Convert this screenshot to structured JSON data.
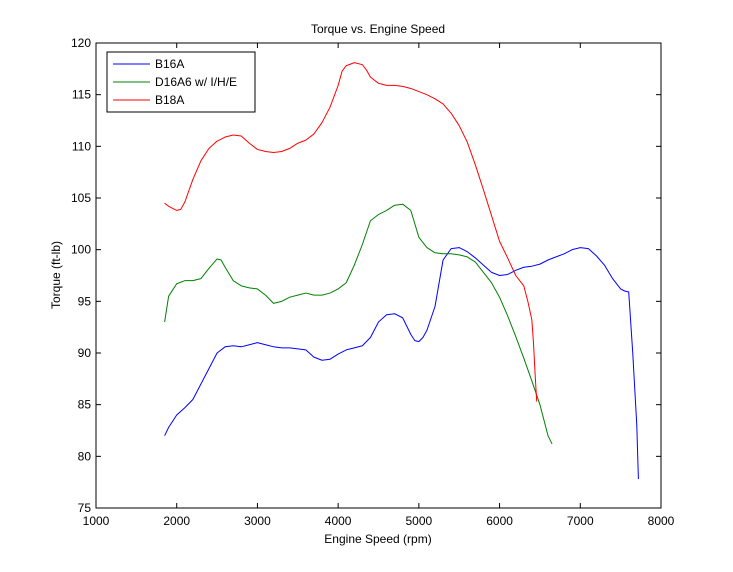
{
  "chart_data": {
    "type": "line",
    "title": "Torque vs. Engine Speed",
    "xlabel": "Engine Speed (rpm)",
    "ylabel": "Torque (ft-lb)",
    "xlim": [
      1000,
      8000
    ],
    "ylim": [
      75,
      120
    ],
    "xticks": [
      1000,
      2000,
      3000,
      4000,
      5000,
      6000,
      7000,
      8000
    ],
    "yticks": [
      75,
      80,
      85,
      90,
      95,
      100,
      105,
      110,
      115,
      120
    ],
    "grid": false,
    "legend_position": "top-left",
    "series": [
      {
        "name": "B16A",
        "color": "#0000ff",
        "x": [
          1850,
          1900,
          2000,
          2100,
          2200,
          2300,
          2400,
          2500,
          2600,
          2700,
          2800,
          2900,
          3000,
          3100,
          3200,
          3300,
          3400,
          3500,
          3600,
          3700,
          3800,
          3900,
          4000,
          4100,
          4200,
          4300,
          4400,
          4500,
          4600,
          4700,
          4800,
          4900,
          4950,
          5000,
          5050,
          5100,
          5200,
          5300,
          5400,
          5500,
          5600,
          5700,
          5800,
          5900,
          6000,
          6100,
          6200,
          6300,
          6400,
          6500,
          6600,
          6700,
          6800,
          6900,
          7000,
          7100,
          7200,
          7300,
          7400,
          7500,
          7550,
          7600,
          7650,
          7700,
          7720
        ],
        "y": [
          82,
          82.8,
          84,
          84.7,
          85.5,
          87,
          88.5,
          90,
          90.6,
          90.7,
          90.6,
          90.8,
          91,
          90.8,
          90.6,
          90.5,
          90.5,
          90.4,
          90.3,
          89.6,
          89.3,
          89.4,
          89.9,
          90.3,
          90.5,
          90.7,
          91.5,
          93,
          93.7,
          93.8,
          93.4,
          91.8,
          91.2,
          91.1,
          91.5,
          92.2,
          94.5,
          99,
          100.1,
          100.2,
          99.8,
          99.2,
          98.5,
          97.8,
          97.5,
          97.6,
          98,
          98.3,
          98.4,
          98.6,
          99,
          99.3,
          99.6,
          100,
          100.2,
          100.1,
          99.4,
          98.5,
          97.2,
          96.2,
          96,
          95.9,
          90,
          83,
          77.8
        ]
      },
      {
        "name": "D16A6 w/ I/H/E",
        "color": "#008000",
        "x": [
          1850,
          1900,
          2000,
          2100,
          2200,
          2300,
          2400,
          2500,
          2550,
          2600,
          2700,
          2800,
          2900,
          3000,
          3100,
          3200,
          3300,
          3400,
          3500,
          3600,
          3700,
          3800,
          3900,
          4000,
          4100,
          4200,
          4300,
          4400,
          4500,
          4600,
          4700,
          4800,
          4900,
          5000,
          5100,
          5200,
          5300,
          5400,
          5500,
          5600,
          5700,
          5800,
          5900,
          6000,
          6100,
          6200,
          6300,
          6400,
          6500,
          6550,
          6600,
          6650
        ],
        "y": [
          93,
          95.5,
          96.7,
          97,
          97,
          97.2,
          98.2,
          99.1,
          99,
          98.3,
          97,
          96.5,
          96.3,
          96.2,
          95.6,
          94.8,
          95,
          95.4,
          95.6,
          95.8,
          95.6,
          95.6,
          95.8,
          96.2,
          96.8,
          98.5,
          100.5,
          102.8,
          103.4,
          103.8,
          104.3,
          104.4,
          103.8,
          101.2,
          100.2,
          99.7,
          99.6,
          99.6,
          99.5,
          99.3,
          98.8,
          97.8,
          96.8,
          95.4,
          93.6,
          91.6,
          89.5,
          87.3,
          85,
          83.5,
          82,
          81.2
        ]
      },
      {
        "name": "B18A",
        "color": "#ff0000",
        "x": [
          1850,
          1900,
          2000,
          2050,
          2100,
          2200,
          2300,
          2400,
          2500,
          2600,
          2700,
          2800,
          2900,
          3000,
          3100,
          3200,
          3300,
          3400,
          3500,
          3600,
          3700,
          3800,
          3900,
          4000,
          4050,
          4100,
          4200,
          4300,
          4350,
          4400,
          4500,
          4600,
          4700,
          4800,
          4900,
          5000,
          5100,
          5200,
          5300,
          5400,
          5500,
          5600,
          5700,
          5800,
          5900,
          6000,
          6100,
          6200,
          6300,
          6350,
          6400,
          6420,
          6440,
          6460
        ],
        "y": [
          104.5,
          104.2,
          103.8,
          103.9,
          104.6,
          106.8,
          108.6,
          109.8,
          110.5,
          110.9,
          111.1,
          111,
          110.3,
          109.7,
          109.5,
          109.4,
          109.5,
          109.8,
          110.3,
          110.6,
          111.2,
          112.3,
          113.8,
          115.9,
          117.3,
          117.8,
          118.1,
          117.9,
          117.4,
          116.7,
          116.1,
          115.9,
          115.9,
          115.8,
          115.6,
          115.3,
          115,
          114.6,
          114.1,
          113.2,
          112,
          110.4,
          108.2,
          105.8,
          103.3,
          100.8,
          99.2,
          97.5,
          96.5,
          95,
          93.2,
          91,
          88,
          85.3
        ]
      }
    ]
  }
}
